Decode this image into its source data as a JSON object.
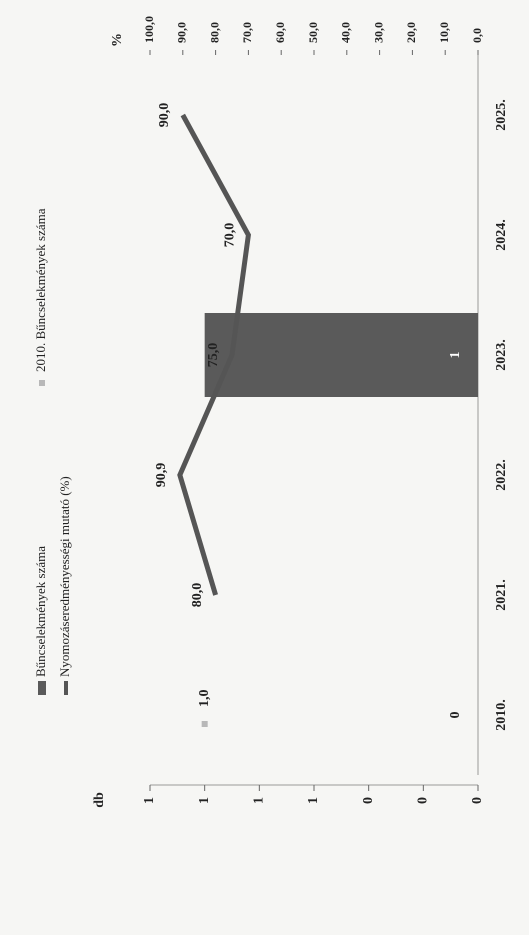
{
  "chart_data": {
    "type": "combo",
    "categories": [
      "2010.",
      "2021.",
      "2022.",
      "2023.",
      "2024.",
      "2025."
    ],
    "ylabel": "db",
    "y2label": "%",
    "ylim": [
      0,
      1.2
    ],
    "yticks": [
      0,
      {
        "value": 0.2,
        "label": "0"
      },
      {
        "value": 0.4,
        "label": "0"
      },
      {
        "value": 0.6,
        "label": "1"
      },
      {
        "value": 0.8,
        "label": "1"
      },
      1,
      {
        "value": 1.2,
        "label": "1"
      }
    ],
    "y2lim": [
      0,
      100
    ],
    "y2ticks": [
      {
        "value": 0,
        "label": "0,0"
      },
      {
        "value": 10,
        "label": "10,0"
      },
      {
        "value": 20,
        "label": "20,0"
      },
      {
        "value": 30,
        "label": "30,0"
      },
      {
        "value": 40,
        "label": "40,0"
      },
      {
        "value": 50,
        "label": "50,0"
      },
      {
        "value": 60,
        "label": "60,0"
      },
      {
        "value": 70,
        "label": "70,0"
      },
      {
        "value": 80,
        "label": "80,0"
      },
      {
        "value": 90,
        "label": "90,0"
      },
      {
        "value": 100,
        "label": "100,0"
      }
    ],
    "series": [
      {
        "name": "Bűncselekmények száma",
        "kind": "bar",
        "axis": "y",
        "color": "#5a5a5a",
        "values": [
          0,
          null,
          null,
          1,
          null,
          null
        ]
      },
      {
        "name": "2010. Bűncselekmények száma",
        "kind": "point",
        "axis": "y",
        "color": "#b8b8b8",
        "values": [
          1.0,
          null,
          null,
          null,
          null,
          null
        ],
        "value_labels": [
          "1,0",
          null,
          null,
          null,
          null,
          null
        ]
      },
      {
        "name": "Nyomozáseredményességi mutató (%)",
        "kind": "line",
        "axis": "y2",
        "color": "#555555",
        "values": [
          null,
          80.0,
          90.9,
          75.0,
          70.0,
          90.0
        ],
        "value_labels": [
          null,
          "80,0",
          "90,9",
          "75,0",
          "70,0",
          "90,0"
        ]
      }
    ]
  }
}
